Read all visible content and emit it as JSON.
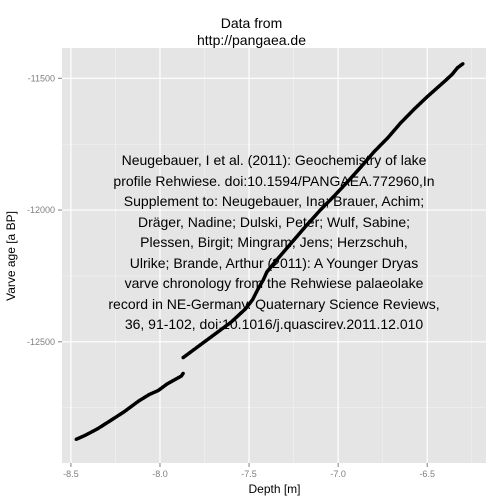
{
  "chart_data": {
    "type": "scatter",
    "title_lines": [
      "Data from",
      "http://pangaea.de"
    ],
    "xlabel": "Depth [m]",
    "ylabel": "Varve age [a BP]",
    "xlim": [
      -8.55,
      -6.17
    ],
    "ylim": [
      -12960,
      -11385
    ],
    "xticks": [
      -8.5,
      -8.0,
      -7.5,
      -7.0,
      -6.5
    ],
    "xtick_labels": [
      "-8.5",
      "-8.0",
      "-7.5",
      "-7.0",
      "-6.5"
    ],
    "yticks": [
      -12500,
      -12000,
      -11500
    ],
    "ytick_labels": [
      "-12500",
      "-12000",
      "-11500"
    ],
    "grid": true,
    "legend": "none",
    "annotation": "Neugebauer, I et al. (2011): Geochemistry of lake\nprofile Rehwiese. doi:10.1594/PANGAEA.772960,In\nSupplement to: Neugebauer, Ina; Brauer, Achim;\nDräger, Nadine; Dulski, Peter; Wulf, Sabine;\nPlessen, Birgit; Mingram, Jens; Herzschuh,\nUlrike; Brande, Arthur (2011): A Younger Dryas\nvarve chronology from the Rehwiese palaeolake\nrecord in NE-Germany. Quaternary Science Reviews,\n36, 91-102, doi:10.1016/j.quascirev.2011.12.010",
    "series": [
      {
        "x": [
          -8.47,
          -8.42,
          -8.35,
          -8.28,
          -8.2,
          -8.12,
          -8.06,
          -8.01,
          -7.96,
          -7.92,
          -7.88,
          -7.87
        ],
        "y": [
          -12870,
          -12855,
          -12830,
          -12800,
          -12765,
          -12725,
          -12700,
          -12685,
          -12660,
          -12645,
          -12630,
          -12620
        ]
      },
      {
        "x": [
          -7.87,
          -7.82,
          -7.75,
          -7.68,
          -7.6,
          -7.52,
          -7.48,
          -7.45,
          -7.42,
          -7.4,
          -7.37,
          -7.32,
          -7.25,
          -7.18,
          -7.1,
          -7.02,
          -6.95,
          -6.87,
          -6.8,
          -6.72,
          -6.65,
          -6.57,
          -6.5,
          -6.45,
          -6.4,
          -6.36,
          -6.33,
          -6.3
        ],
        "y": [
          -12560,
          -12535,
          -12500,
          -12465,
          -12425,
          -12375,
          -12340,
          -12300,
          -12265,
          -12235,
          -12210,
          -12170,
          -12115,
          -12060,
          -12000,
          -11945,
          -11895,
          -11835,
          -11780,
          -11725,
          -11670,
          -11615,
          -11570,
          -11540,
          -11510,
          -11485,
          -11460,
          -11445
        ]
      }
    ],
    "colors": {
      "panel": "#e5e5e5",
      "grid_major": "#ffffff",
      "grid_minor": "#f2f2f2",
      "points": "#000000",
      "ticks": "#7f7f7f"
    }
  }
}
